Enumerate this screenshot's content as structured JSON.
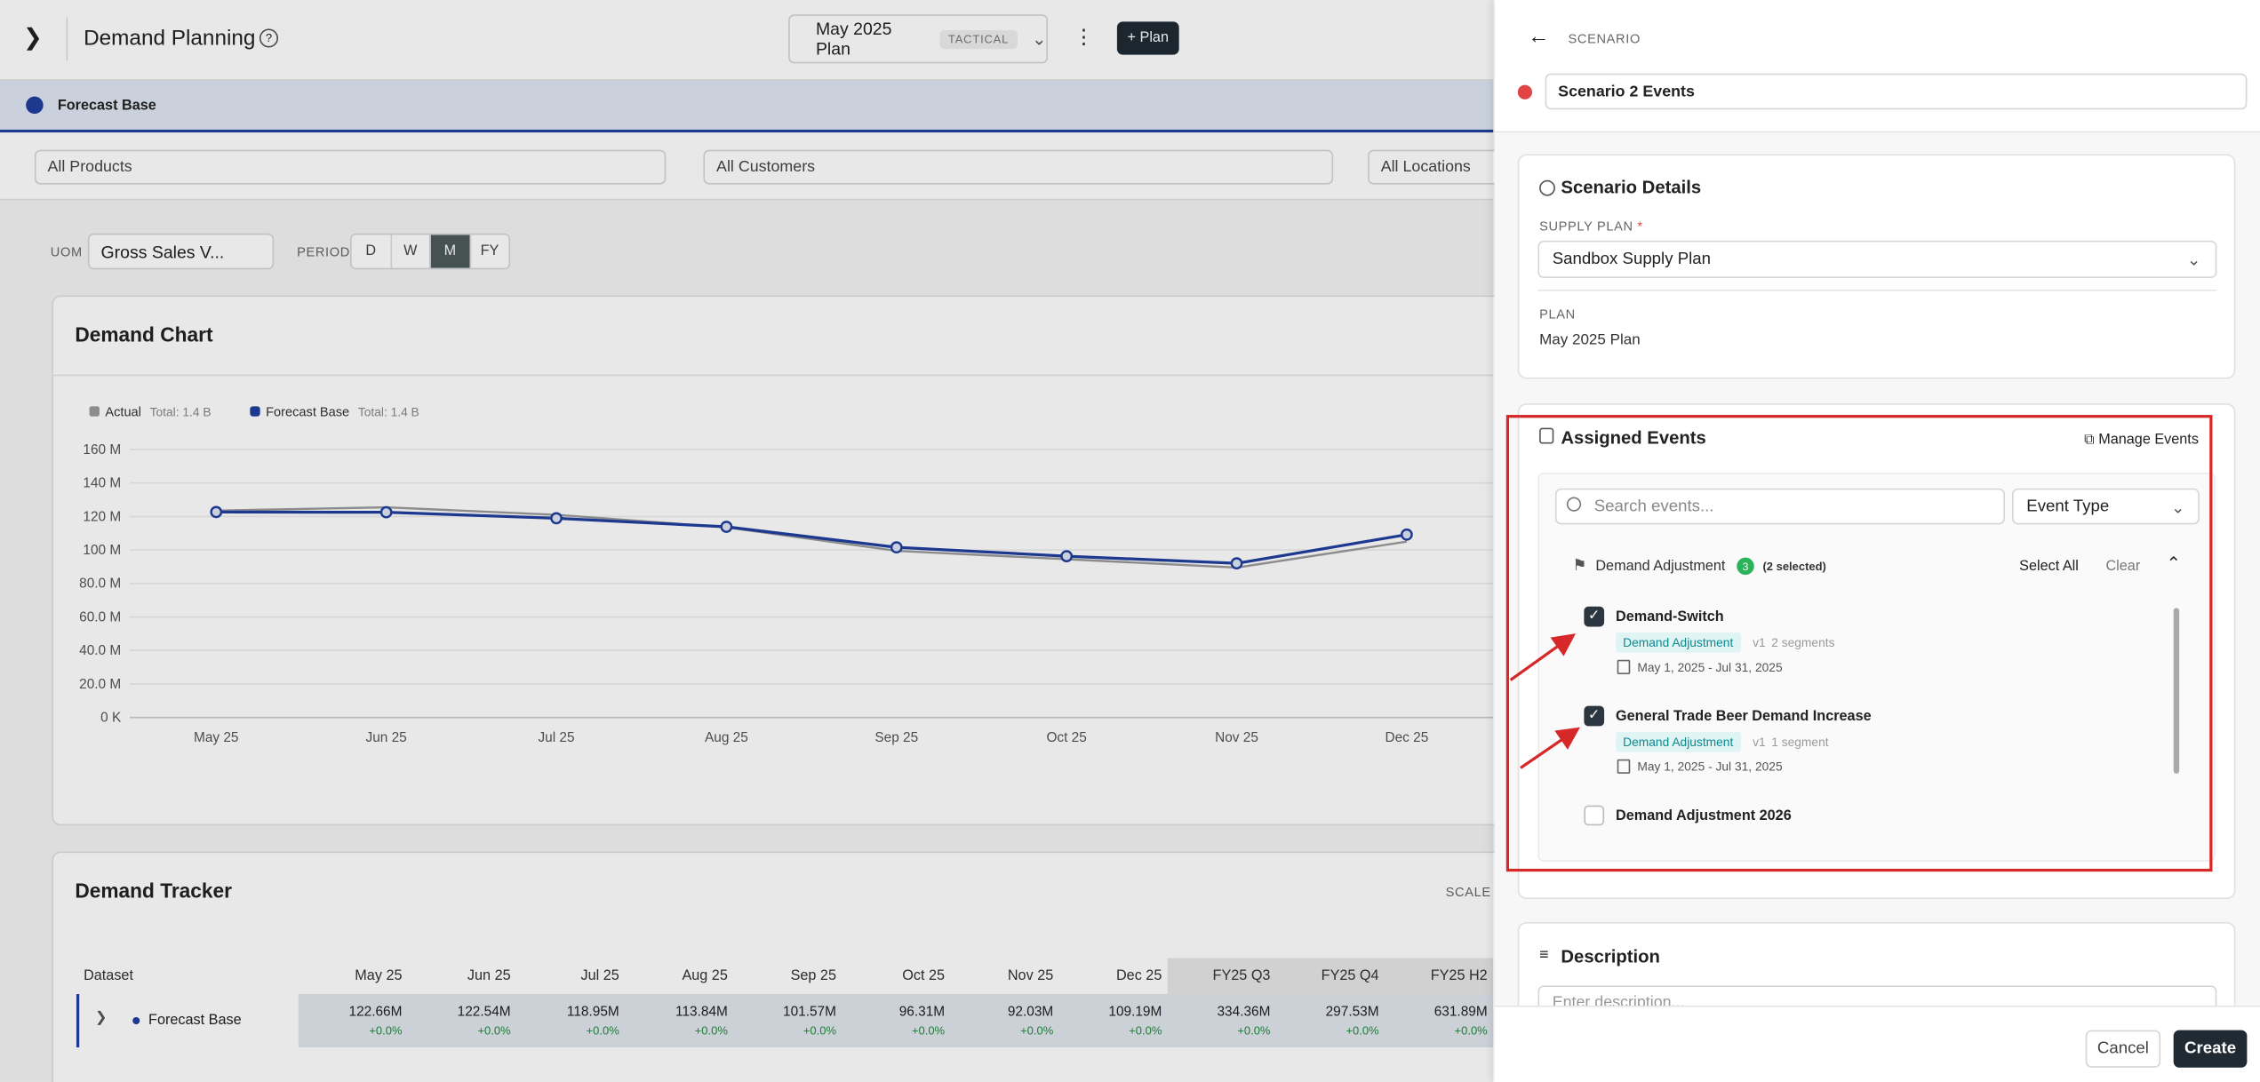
{
  "header": {
    "title": "Demand Planning",
    "plan": "May 2025 Plan",
    "plan_tag": "TACTICAL",
    "add_plan": "+ Plan"
  },
  "scenario_bar": {
    "label": "Forecast Base"
  },
  "filters": [
    "All Products",
    "All Customers",
    "All Locations"
  ],
  "controls": {
    "uom_label": "UOM",
    "uom_value": "Gross Sales V...",
    "period_label": "PERIOD",
    "periods": [
      "D",
      "W",
      "M",
      "FY"
    ],
    "active_period": "M"
  },
  "chart_data": {
    "type": "line",
    "title": "Demand Chart",
    "categories": [
      "May 25",
      "Jun 25",
      "Jul 25",
      "Aug 25",
      "Sep 25",
      "Oct 25",
      "Nov 25",
      "Dec 25"
    ],
    "series": [
      {
        "name": "Actual",
        "total": "Total: 1.4 B",
        "color": "#9a9a9a",
        "values": [
          123.5,
          125.5,
          121,
          113.5,
          99.5,
          94.5,
          89.5,
          105
        ]
      },
      {
        "name": "Forecast Base",
        "total": "Total: 1.4 B",
        "color": "#1f3f9e",
        "values": [
          122.66,
          122.54,
          118.95,
          113.84,
          101.57,
          96.31,
          92.03,
          109.19
        ]
      }
    ],
    "ylim": [
      0,
      160
    ],
    "yticks": [
      {
        "value": 0,
        "label": "0 K"
      },
      {
        "value": 20,
        "label": "20.0 M"
      },
      {
        "value": 40,
        "label": "40.0 M"
      },
      {
        "value": 60,
        "label": "60.0 M"
      },
      {
        "value": 80,
        "label": "80.0 M"
      },
      {
        "value": 100,
        "label": "100 M"
      },
      {
        "value": 120,
        "label": "120 M"
      },
      {
        "value": 140,
        "label": "140 M"
      },
      {
        "value": 160,
        "label": "160 M"
      }
    ],
    "grid": true
  },
  "tracker": {
    "title": "Demand Tracker",
    "scale_label": "SCALE",
    "columns": [
      "Dataset",
      "May 25",
      "Jun 25",
      "Jul 25",
      "Aug 25",
      "Sep 25",
      "Oct 25",
      "Nov 25",
      "Dec 25",
      "FY25 Q3",
      "FY25 Q4",
      "FY25 H2"
    ],
    "rows": [
      {
        "name": "Forecast Base",
        "values": [
          "122.66M",
          "122.54M",
          "118.95M",
          "113.84M",
          "101.57M",
          "96.31M",
          "92.03M",
          "109.19M",
          "334.36M",
          "297.53M",
          "631.89M"
        ],
        "changes": [
          "+0.0%",
          "+0.0%",
          "+0.0%",
          "+0.0%",
          "+0.0%",
          "+0.0%",
          "+0.0%",
          "+0.0%",
          "+0.0%",
          "+0.0%",
          "+0.0%"
        ]
      }
    ]
  },
  "panel": {
    "section": "SCENARIO",
    "name": "Scenario 2 Events",
    "details": {
      "title": "Scenario Details",
      "supply_plan_label": "SUPPLY PLAN",
      "required": "*",
      "supply_plan": "Sandbox Supply Plan",
      "plan_label": "PLAN",
      "plan": "May 2025 Plan"
    },
    "events": {
      "title": "Assigned Events",
      "manage": "Manage Events",
      "search_placeholder": "Search events...",
      "type_filter": "Event Type",
      "group": {
        "name": "Demand Adjustment",
        "count": 3,
        "selected": "(2 selected)",
        "select_all": "Select All",
        "clear": "Clear"
      },
      "items": [
        {
          "name": "Demand-Switch",
          "checked": true,
          "tag": "Demand Adjustment",
          "version": "v1",
          "segments": "2 segments",
          "dates": "May 1, 2025 - Jul 31, 2025"
        },
        {
          "name": "General Trade Beer Demand Increase",
          "checked": true,
          "tag": "Demand Adjustment",
          "version": "v1",
          "segments": "1 segment",
          "dates": "May 1, 2025 - Jul 31, 2025"
        },
        {
          "name": "Demand Adjustment 2026",
          "checked": false
        }
      ]
    },
    "description": {
      "title": "Description",
      "placeholder": "Enter description..."
    },
    "cancel": "Cancel",
    "create": "Create"
  }
}
